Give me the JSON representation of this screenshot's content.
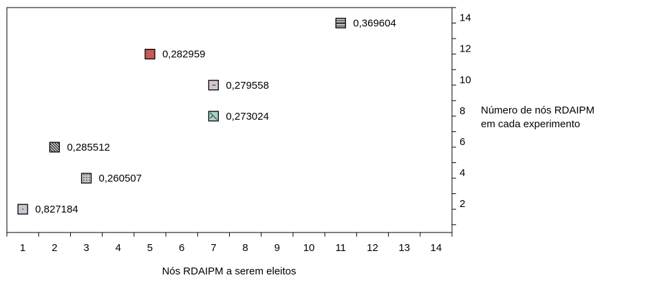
{
  "chart_data": {
    "type": "scatter",
    "title": "",
    "xlabel": "Nós RDAIPM a serem eleitos",
    "ylabel_lines": [
      "Número de nós RDAIPM",
      "em cada experimento"
    ],
    "xlim": [
      0.5,
      14.5
    ],
    "ylim": [
      0.5,
      15
    ],
    "x_ticks": [
      "1",
      "2",
      "3",
      "4",
      "5",
      "6",
      "7",
      "8",
      "9",
      "10",
      "11",
      "12",
      "13",
      "14"
    ],
    "y_ticks": [
      "2",
      "4",
      "6",
      "8",
      "10",
      "12",
      "14"
    ],
    "y_axis_position": "right",
    "grid": false,
    "points": [
      {
        "x": 1,
        "y": 2,
        "label": "0,827184",
        "fill": "#c8c8d0",
        "pattern": "dot"
      },
      {
        "x": 3,
        "y": 4,
        "label": "0,260507",
        "fill": "#c8c8c8",
        "pattern": "dots"
      },
      {
        "x": 2,
        "y": 6,
        "label": "0,285512",
        "fill": "#b8b8b8",
        "pattern": "diagonal"
      },
      {
        "x": 7,
        "y": 8,
        "label": "0,273024",
        "fill": "#a8d0c8",
        "pattern": "cross"
      },
      {
        "x": 7,
        "y": 10,
        "label": "0,279558",
        "fill": "#d0c8d0",
        "pattern": "dash"
      },
      {
        "x": 5,
        "y": 12,
        "label": "0,282959",
        "fill": "#c85a5a",
        "pattern": "solid"
      },
      {
        "x": 11,
        "y": 14,
        "label": "0,369604",
        "fill": "#c0c0c0",
        "pattern": "hstripe"
      }
    ]
  }
}
